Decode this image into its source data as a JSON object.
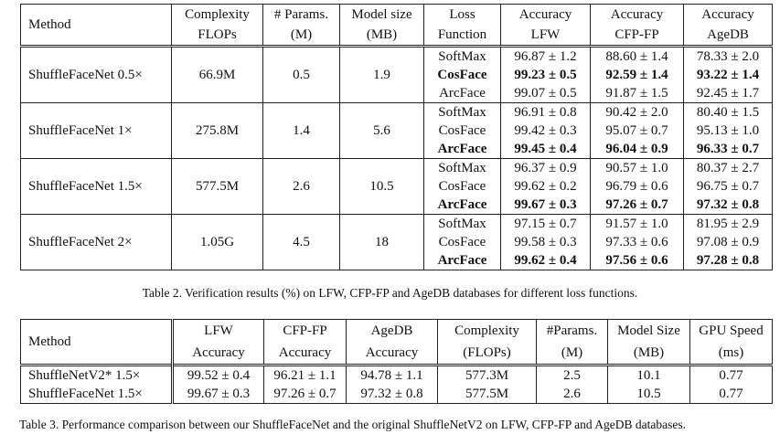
{
  "table2": {
    "headers": {
      "method": "Method",
      "complexity": [
        "Complexity",
        "FLOPs"
      ],
      "params": [
        "# Params.",
        "(M)"
      ],
      "size": [
        "Model size",
        "(MB)"
      ],
      "loss": [
        "Loss",
        "Function"
      ],
      "lfw": [
        "Accuracy",
        "LFW"
      ],
      "cfp": [
        "Accuracy",
        "CFP-FP"
      ],
      "agedb": [
        "Accuracy",
        "AgeDB"
      ]
    },
    "groups": [
      {
        "method": "ShuffleFaceNet 0.5×",
        "flops": "66.9M",
        "params": "0.5",
        "size": "1.9",
        "rows": [
          {
            "loss": "SoftMax",
            "lfw": "96.87 ± 1.2",
            "cfp": "88.60 ± 1.4",
            "agedb": "78.33 ± 2.0"
          },
          {
            "loss": "CosFace",
            "lfw": "99.23 ± 0.5",
            "cfp": "92.59 ± 1.4",
            "agedb": "93.22 ± 1.4"
          },
          {
            "loss": "ArcFace",
            "lfw": "99.07 ± 0.5",
            "cfp": "91.87 ± 1.5",
            "agedb": "92.45 ± 1.7"
          }
        ]
      },
      {
        "method": "ShuffleFaceNet 1×",
        "flops": "275.8M",
        "params": "1.4",
        "size": "5.6",
        "rows": [
          {
            "loss": "SoftMax",
            "lfw": "96.91 ± 0.8",
            "cfp": "90.42 ± 2.0",
            "agedb": "80.40 ± 1.5"
          },
          {
            "loss": "CosFace",
            "lfw": "99.42 ± 0.3",
            "cfp": "95.07 ± 0.7",
            "agedb": "95.13 ± 1.0"
          },
          {
            "loss": "ArcFace",
            "lfw": "99.45 ± 0.4",
            "cfp": "96.04 ± 0.9",
            "agedb": "96.33 ± 0.7"
          }
        ]
      },
      {
        "method": "ShuffleFaceNet 1.5×",
        "flops": "577.5M",
        "params": "2.6",
        "size": "10.5",
        "rows": [
          {
            "loss": "SoftMax",
            "lfw": "96.37 ± 0.9",
            "cfp": "90.57 ± 1.0",
            "agedb": "80.37 ± 2.7"
          },
          {
            "loss": "CosFace",
            "lfw": "99.62 ± 0.2",
            "cfp": "96.79 ± 0.6",
            "agedb": "96.75 ± 0.7"
          },
          {
            "loss": "ArcFace",
            "lfw": "99.67 ± 0.3",
            "cfp": "97.26 ± 0.7",
            "agedb": "97.32 ± 0.8"
          }
        ]
      },
      {
        "method": "ShuffleFaceNet 2×",
        "flops": "1.05G",
        "params": "4.5",
        "size": "18",
        "rows": [
          {
            "loss": "SoftMax",
            "lfw": "97.15 ± 0.7",
            "cfp": "91.57 ± 1.0",
            "agedb": "81.95 ± 2.9"
          },
          {
            "loss": "CosFace",
            "lfw": "99.58 ± 0.3",
            "cfp": "97.33 ± 0.6",
            "agedb": "97.08 ± 0.9"
          },
          {
            "loss": "ArcFace",
            "lfw": "99.62 ± 0.4",
            "cfp": "97.56 ± 0.6",
            "agedb": "97.28 ± 0.8"
          }
        ]
      }
    ],
    "caption": "Table 2. Verification results (%) on LFW, CFP-FP and AgeDB databases for different loss functions."
  },
  "table3": {
    "headers": {
      "method": "Method",
      "lfw": [
        "LFW",
        "Accuracy"
      ],
      "cfp": [
        "CFP-FP",
        "Accuracy"
      ],
      "agedb": [
        "AgeDB",
        "Accuracy"
      ],
      "complexity": [
        "Complexity",
        "(FLOPs)"
      ],
      "params": [
        "#Params.",
        "(M)"
      ],
      "size": [
        "Model Size",
        "(MB)"
      ],
      "gpu": [
        "GPU Speed",
        "(ms)"
      ]
    },
    "rows": [
      {
        "method": "ShuffleNetV2* 1.5×",
        "lfw": "99.52 ± 0.4",
        "cfp": "96.21 ± 1.1",
        "agedb": "94.78 ± 1.1",
        "flops": "577.3M",
        "params": "2.5",
        "size": "10.1",
        "gpu": "0.77"
      },
      {
        "method": "ShuffleFaceNet 1.5×",
        "lfw": "99.67 ± 0.3",
        "cfp": "97.26 ± 0.7",
        "agedb": "97.32 ± 0.8",
        "flops": "577.5M",
        "params": "2.6",
        "size": "10.5",
        "gpu": "0.77"
      }
    ],
    "caption": "Table 3. Performance comparison between our ShuffleFaceNet and the original ShuffleNetV2 on LFW, CFP-FP and AgeDB databases."
  }
}
